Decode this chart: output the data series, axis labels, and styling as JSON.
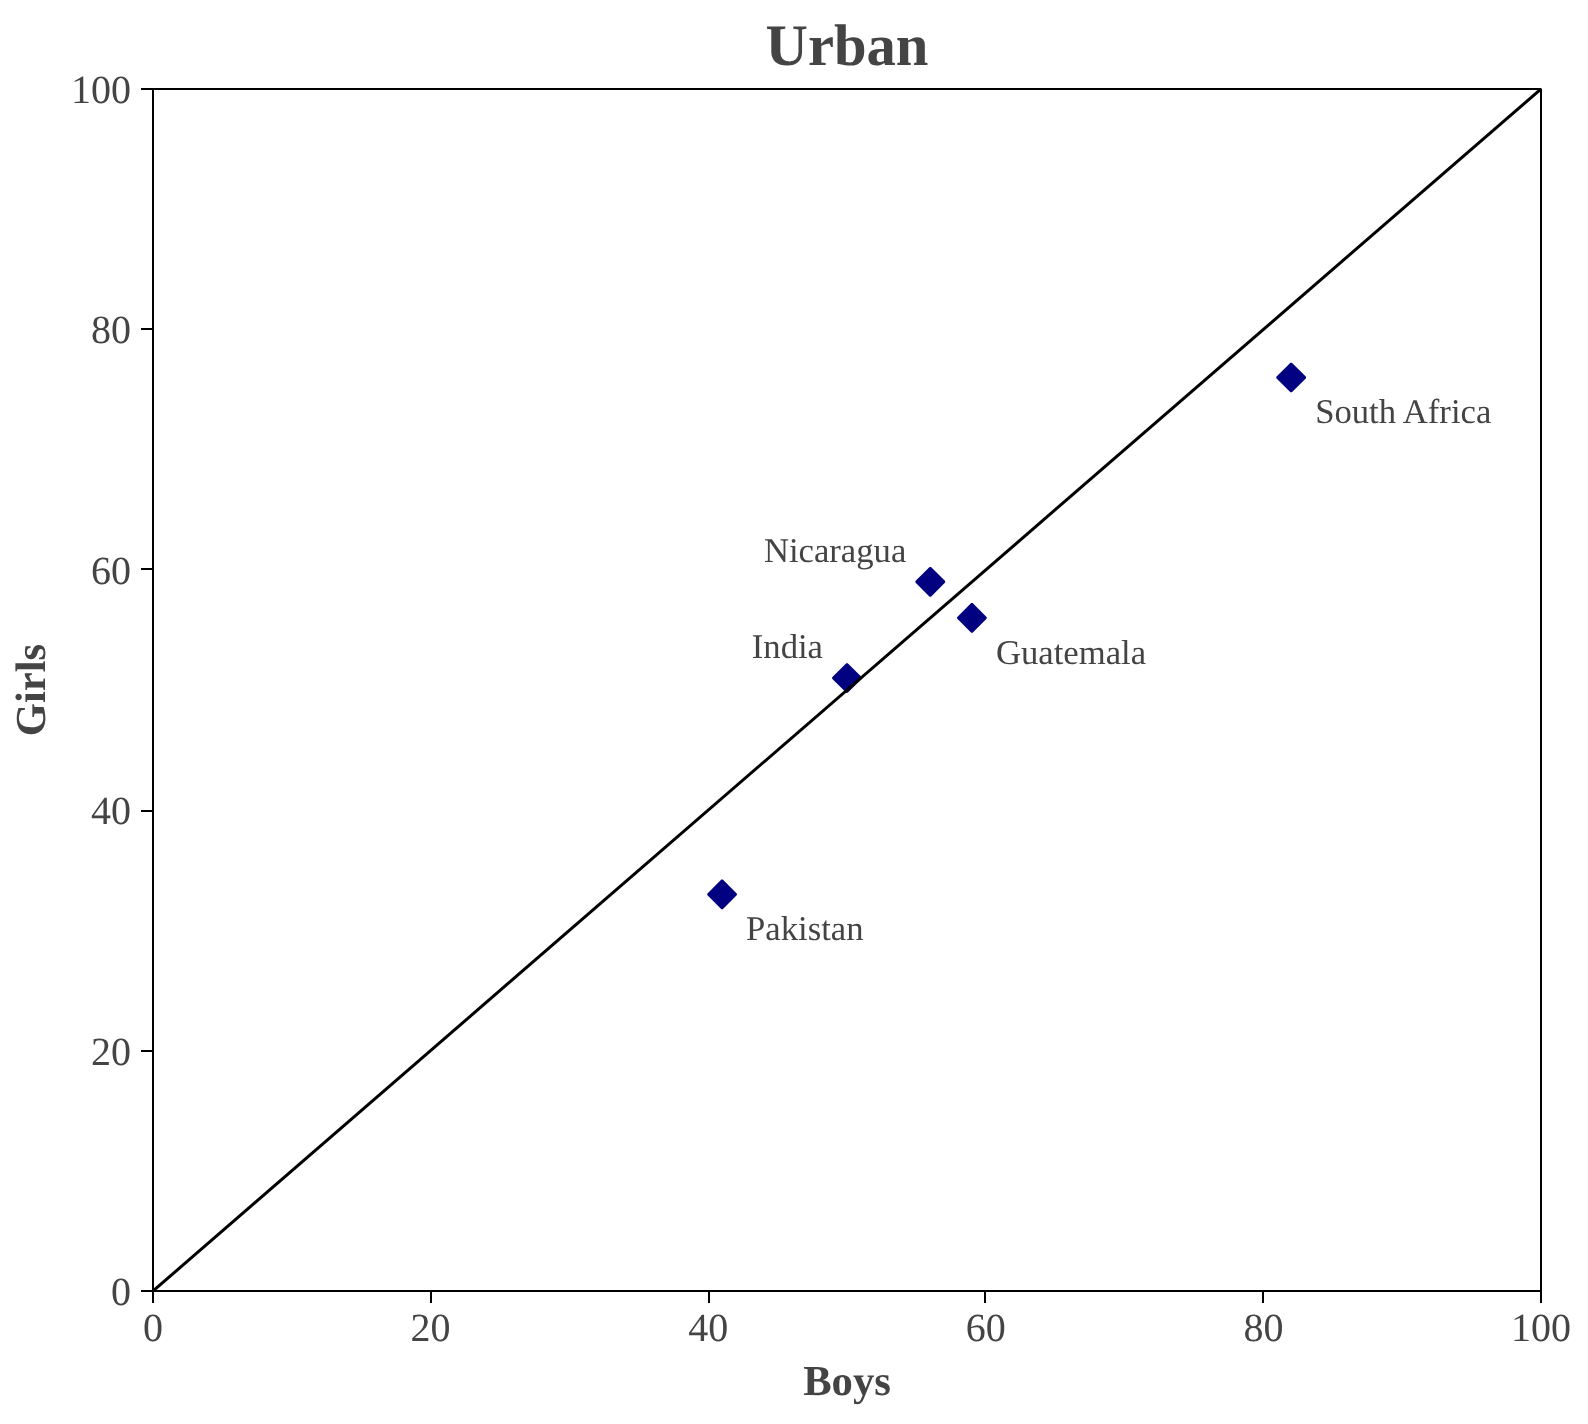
{
  "chart_data": {
    "type": "scatter",
    "title": "Urban",
    "xlabel": "Boys",
    "ylabel": "Girls",
    "xlim": [
      0,
      100
    ],
    "ylim": [
      0,
      100
    ],
    "xticks": [
      0,
      20,
      40,
      60,
      80,
      100
    ],
    "yticks": [
      0,
      20,
      40,
      60,
      80,
      100
    ],
    "grid": false,
    "marker": "diamond",
    "series": [
      {
        "color": "#000080",
        "x": [
          82,
          56,
          59,
          50,
          41
        ],
        "values": [
          76,
          59,
          56,
          51,
          33
        ]
      },
      {
        "type": "line",
        "color": "#000000",
        "x": [
          0,
          100
        ],
        "values": [
          0,
          100
        ],
        "line_style": "solid",
        "marker": "none"
      }
    ],
    "annotations": [
      {
        "text": "South Africa",
        "x": 82,
        "y": 76
      },
      {
        "text": "Nicaragua",
        "x": 56,
        "y": 59
      },
      {
        "text": "Guatemala",
        "x": 59,
        "y": 56
      },
      {
        "text": "India",
        "x": 50,
        "y": 51
      },
      {
        "text": "Pakistan",
        "x": 41,
        "y": 33
      }
    ]
  }
}
